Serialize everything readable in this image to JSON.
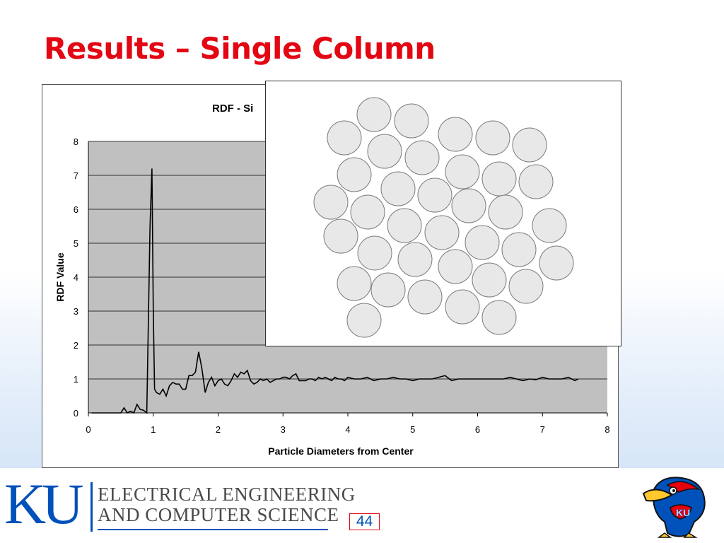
{
  "slide": {
    "title": "Results – Single Column",
    "page_number": "44"
  },
  "footer": {
    "logo_letters": "KU",
    "dept_line1": "ELECTRICAL ENGINEERING",
    "dept_line2": "AND COMPUTER SCIENCE"
  },
  "colors": {
    "title": "#e30613",
    "ku_blue": "#0051ba",
    "plot_background": "#c0c0c0",
    "line": "#000000",
    "particle_fill": "#e8e8e8",
    "particle_stroke": "#7a7a7a"
  },
  "chart_data": {
    "type": "line",
    "title": "RDF - Si",
    "xlabel": "Particle Diameters from Center",
    "ylabel": "RDF Value",
    "xlim": [
      0,
      8
    ],
    "ylim": [
      0,
      8
    ],
    "x_ticks": [
      0,
      1,
      2,
      3,
      4,
      5,
      6,
      7,
      8
    ],
    "y_ticks": [
      0,
      1,
      2,
      3,
      4,
      5,
      6,
      7,
      8
    ],
    "grid": "horizontal",
    "series": [
      {
        "x": [
          0.05,
          0.5,
          0.55,
          0.6,
          0.65,
          0.7,
          0.75,
          0.8,
          0.85,
          0.9,
          0.95,
          0.98,
          1.0,
          1.02,
          1.05,
          1.1,
          1.15,
          1.2,
          1.25,
          1.3,
          1.35,
          1.4,
          1.45,
          1.5,
          1.55,
          1.6,
          1.65,
          1.7,
          1.75,
          1.8,
          1.85,
          1.9,
          1.95,
          2.0,
          2.05,
          2.1,
          2.15,
          2.2,
          2.25,
          2.3,
          2.35,
          2.4,
          2.45,
          2.5,
          2.55,
          2.6,
          2.65,
          2.7,
          2.75,
          2.8,
          2.85,
          2.9,
          2.95,
          3.0,
          3.05,
          3.1,
          3.15,
          3.2,
          3.25,
          3.3,
          3.35,
          3.4,
          3.45,
          3.5,
          3.55,
          3.6,
          3.65,
          3.7,
          3.75,
          3.8,
          3.85,
          3.9,
          3.95,
          4.0,
          4.1,
          4.2,
          4.3,
          4.4,
          4.5,
          4.6,
          4.7,
          4.8,
          4.9,
          5.0,
          5.1,
          5.2,
          5.3,
          5.4,
          5.5,
          5.6,
          5.7,
          5.8,
          5.9,
          6.0,
          6.1,
          6.2,
          6.3,
          6.4,
          6.5,
          6.6,
          6.7,
          6.8,
          6.9,
          7.0,
          7.1,
          7.2,
          7.3,
          7.4,
          7.5,
          7.55
        ],
        "y": [
          0.0,
          0.0,
          0.15,
          0.0,
          0.05,
          0.0,
          0.25,
          0.1,
          0.08,
          0.0,
          5.5,
          7.2,
          3.0,
          0.7,
          0.6,
          0.55,
          0.7,
          0.5,
          0.8,
          0.9,
          0.85,
          0.85,
          0.7,
          0.7,
          1.1,
          1.1,
          1.2,
          1.8,
          1.3,
          0.6,
          0.9,
          1.05,
          0.8,
          0.95,
          1.0,
          0.85,
          0.8,
          0.95,
          1.15,
          1.05,
          1.2,
          1.15,
          1.25,
          0.95,
          0.85,
          0.9,
          1.0,
          0.95,
          1.0,
          0.9,
          0.95,
          1.0,
          1.0,
          1.05,
          1.05,
          1.0,
          1.1,
          1.15,
          0.95,
          0.95,
          0.95,
          1.0,
          1.0,
          0.95,
          1.05,
          1.0,
          1.05,
          1.0,
          0.95,
          1.05,
          1.0,
          1.0,
          0.95,
          1.05,
          1.0,
          1.0,
          1.05,
          0.95,
          1.0,
          1.0,
          1.05,
          1.0,
          1.0,
          0.95,
          1.0,
          1.0,
          1.0,
          1.05,
          1.1,
          0.95,
          1.0,
          1.0,
          1.0,
          1.0,
          1.0,
          1.0,
          1.0,
          1.0,
          1.05,
          1.0,
          0.95,
          1.0,
          0.98,
          1.05,
          1.0,
          1.0,
          1.0,
          1.05,
          0.95,
          1.0
        ]
      }
    ]
  },
  "packing_inset": {
    "particles": [
      [
        528,
        161
      ],
      [
        581,
        170
      ],
      [
        643,
        189
      ],
      [
        696,
        194
      ],
      [
        748,
        204
      ],
      [
        486,
        194
      ],
      [
        543,
        213
      ],
      [
        596,
        222
      ],
      [
        653,
        242
      ],
      [
        705,
        252
      ],
      [
        757,
        256
      ],
      [
        500,
        246
      ],
      [
        562,
        266
      ],
      [
        614,
        275
      ],
      [
        662,
        290
      ],
      [
        714,
        299
      ],
      [
        467,
        285
      ],
      [
        519,
        299
      ],
      [
        571,
        318
      ],
      [
        624,
        328
      ],
      [
        681,
        342
      ],
      [
        733,
        352
      ],
      [
        776,
        318
      ],
      [
        481,
        333
      ],
      [
        529,
        357
      ],
      [
        586,
        366
      ],
      [
        643,
        376
      ],
      [
        786,
        371
      ],
      [
        500,
        400
      ],
      [
        548,
        409
      ],
      [
        600,
        419
      ],
      [
        691,
        395
      ],
      [
        743,
        404
      ],
      [
        653,
        433
      ],
      [
        514,
        452
      ],
      [
        705,
        448
      ]
    ],
    "radius": 24
  }
}
